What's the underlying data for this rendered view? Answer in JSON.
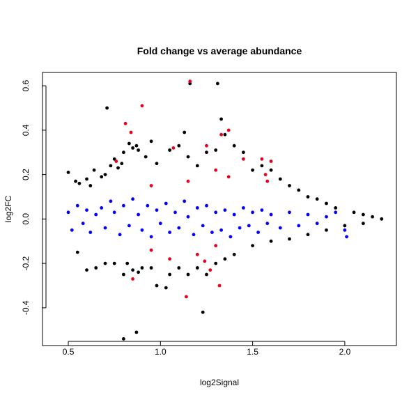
{
  "chart_data": {
    "type": "scatter",
    "title": "Fold change vs average abundance",
    "xlabel": "log2Signal",
    "ylabel": "log2FC",
    "xlim": [
      0.36,
      2.28
    ],
    "ylim": [
      -0.57,
      0.66
    ],
    "xticks": [
      0.5,
      1.0,
      1.5,
      2.0
    ],
    "yticks": [
      -0.4,
      -0.2,
      0.0,
      0.2,
      0.4,
      0.6
    ],
    "grid": false,
    "series": [
      {
        "color": "#000000",
        "points": [
          [
            0.5,
            0.21
          ],
          [
            0.54,
            0.17
          ],
          [
            0.56,
            0.16
          ],
          [
            0.6,
            0.18
          ],
          [
            0.62,
            0.15
          ],
          [
            0.64,
            0.22
          ],
          [
            0.68,
            0.19
          ],
          [
            0.7,
            0.2
          ],
          [
            0.71,
            0.5
          ],
          [
            0.73,
            0.24
          ],
          [
            0.75,
            0.27
          ],
          [
            0.77,
            0.23
          ],
          [
            0.79,
            0.25
          ],
          [
            0.8,
            0.3
          ],
          [
            0.83,
            0.34
          ],
          [
            0.85,
            0.32
          ],
          [
            0.87,
            0.33
          ],
          [
            0.88,
            0.31
          ],
          [
            0.92,
            0.28
          ],
          [
            0.95,
            0.35
          ],
          [
            0.98,
            0.25
          ],
          [
            1.05,
            0.31
          ],
          [
            1.1,
            0.33
          ],
          [
            1.13,
            0.39
          ],
          [
            1.15,
            0.28
          ],
          [
            1.2,
            0.24
          ],
          [
            1.25,
            0.3
          ],
          [
            1.3,
            0.31
          ],
          [
            1.16,
            0.61
          ],
          [
            1.31,
            0.61
          ],
          [
            1.33,
            0.45
          ],
          [
            1.35,
            0.38
          ],
          [
            1.4,
            0.33
          ],
          [
            1.45,
            0.3
          ],
          [
            1.5,
            0.22
          ],
          [
            1.55,
            0.24
          ],
          [
            1.6,
            0.22
          ],
          [
            1.65,
            0.18
          ],
          [
            1.7,
            0.15
          ],
          [
            1.75,
            0.13
          ],
          [
            1.8,
            0.1
          ],
          [
            1.85,
            0.09
          ],
          [
            1.9,
            0.07
          ],
          [
            1.95,
            0.05
          ],
          [
            2.05,
            0.03
          ],
          [
            2.1,
            0.02
          ],
          [
            2.15,
            0.01
          ],
          [
            2.2,
            0.0
          ],
          [
            0.55,
            -0.15
          ],
          [
            0.6,
            -0.23
          ],
          [
            0.65,
            -0.22
          ],
          [
            0.7,
            -0.2
          ],
          [
            0.75,
            -0.2
          ],
          [
            0.8,
            -0.25
          ],
          [
            0.82,
            -0.2
          ],
          [
            0.85,
            -0.23
          ],
          [
            0.88,
            -0.24
          ],
          [
            0.9,
            -0.22
          ],
          [
            0.95,
            -0.22
          ],
          [
            0.98,
            -0.3
          ],
          [
            1.03,
            -0.31
          ],
          [
            1.05,
            -0.25
          ],
          [
            1.1,
            -0.22
          ],
          [
            1.15,
            -0.25
          ],
          [
            1.2,
            -0.22
          ],
          [
            1.25,
            -0.25
          ],
          [
            1.3,
            -0.2
          ],
          [
            1.35,
            -0.18
          ],
          [
            1.4,
            -0.16
          ],
          [
            1.5,
            -0.12
          ],
          [
            1.6,
            -0.1
          ],
          [
            1.7,
            -0.09
          ],
          [
            1.8,
            -0.07
          ],
          [
            1.9,
            -0.05
          ],
          [
            2.0,
            -0.03
          ],
          [
            2.1,
            -0.02
          ],
          [
            1.23,
            -0.42
          ],
          [
            0.87,
            -0.51
          ],
          [
            0.8,
            -0.54
          ]
        ]
      },
      {
        "color": "#0000ff",
        "points": [
          [
            0.5,
            0.03
          ],
          [
            0.52,
            -0.05
          ],
          [
            0.55,
            0.06
          ],
          [
            0.58,
            -0.02
          ],
          [
            0.6,
            0.04
          ],
          [
            0.62,
            -0.06
          ],
          [
            0.65,
            0.02
          ],
          [
            0.68,
            0.05
          ],
          [
            0.7,
            -0.04
          ],
          [
            0.73,
            0.08
          ],
          [
            0.75,
            0.03
          ],
          [
            0.78,
            -0.07
          ],
          [
            0.8,
            0.06
          ],
          [
            0.83,
            -0.03
          ],
          [
            0.85,
            0.09
          ],
          [
            0.88,
            0.02
          ],
          [
            0.9,
            -0.05
          ],
          [
            0.93,
            0.06
          ],
          [
            0.95,
            -0.08
          ],
          [
            0.98,
            0.04
          ],
          [
            1.0,
            -0.02
          ],
          [
            1.03,
            0.07
          ],
          [
            1.05,
            -0.06
          ],
          [
            1.08,
            0.03
          ],
          [
            1.1,
            -0.04
          ],
          [
            1.13,
            0.08
          ],
          [
            1.15,
            0.01
          ],
          [
            1.18,
            -0.07
          ],
          [
            1.2,
            0.05
          ],
          [
            1.23,
            -0.03
          ],
          [
            1.25,
            0.06
          ],
          [
            1.28,
            -0.06
          ],
          [
            1.3,
            0.03
          ],
          [
            1.33,
            -0.05
          ],
          [
            1.35,
            0.04
          ],
          [
            1.38,
            -0.08
          ],
          [
            1.4,
            0.02
          ],
          [
            1.43,
            -0.04
          ],
          [
            1.45,
            0.05
          ],
          [
            1.48,
            -0.03
          ],
          [
            1.5,
            0.03
          ],
          [
            1.53,
            -0.06
          ],
          [
            1.55,
            0.04
          ],
          [
            1.58,
            -0.02
          ],
          [
            1.6,
            0.02
          ],
          [
            1.65,
            -0.04
          ],
          [
            1.7,
            0.03
          ],
          [
            1.75,
            -0.03
          ],
          [
            1.8,
            0.02
          ],
          [
            1.85,
            -0.02
          ],
          [
            1.9,
            0.01
          ],
          [
            1.95,
            0.03
          ],
          [
            2.0,
            -0.05
          ],
          [
            2.01,
            -0.08
          ]
        ]
      },
      {
        "color": "#e8001c",
        "points": [
          [
            1.16,
            0.62
          ],
          [
            0.9,
            0.51
          ],
          [
            0.81,
            0.43
          ],
          [
            0.84,
            0.39
          ],
          [
            1.37,
            0.4
          ],
          [
            1.33,
            0.38
          ],
          [
            0.76,
            0.26
          ],
          [
            1.07,
            0.32
          ],
          [
            1.25,
            0.33
          ],
          [
            1.45,
            0.27
          ],
          [
            1.55,
            0.27
          ],
          [
            1.6,
            0.26
          ],
          [
            1.3,
            0.22
          ],
          [
            1.57,
            0.2
          ],
          [
            1.58,
            0.17
          ],
          [
            0.95,
            0.15
          ],
          [
            1.15,
            0.17
          ],
          [
            1.37,
            0.19
          ],
          [
            0.85,
            -0.27
          ],
          [
            1.14,
            -0.35
          ],
          [
            1.32,
            -0.3
          ],
          [
            1.2,
            -0.16
          ],
          [
            1.05,
            -0.18
          ],
          [
            1.3,
            -0.12
          ],
          [
            0.95,
            -0.14
          ],
          [
            1.27,
            -0.23
          ],
          [
            1.24,
            -0.19
          ]
        ]
      }
    ]
  }
}
